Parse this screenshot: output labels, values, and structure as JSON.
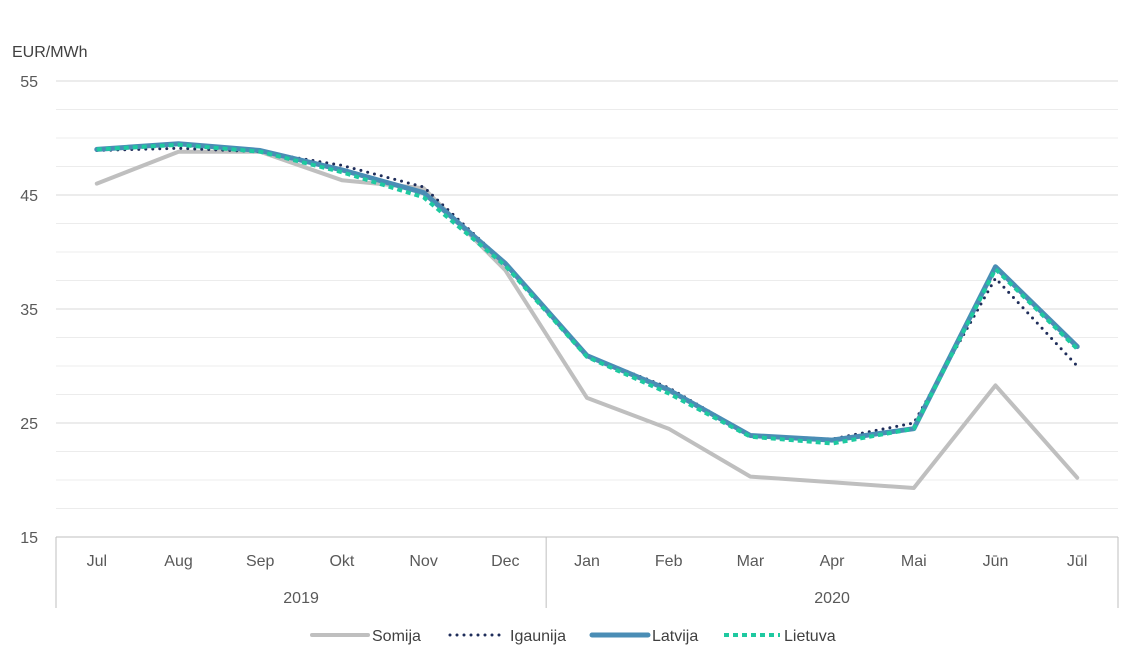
{
  "chart_data": {
    "type": "line",
    "title": "",
    "ylabel": "EUR/MWh",
    "xlabel": "",
    "ylim": [
      15,
      55
    ],
    "yticks": [
      15,
      25,
      35,
      45,
      55
    ],
    "grid": true,
    "legend_position": "bottom",
    "categories": [
      "Jul",
      "Aug",
      "Sep",
      "Okt",
      "Nov",
      "Dec",
      "Jan",
      "Feb",
      "Mar",
      "Apr",
      "Mai",
      "Jūn",
      "Jūl"
    ],
    "year_groups": [
      {
        "label": "2019",
        "span": 6
      },
      {
        "label": "2020",
        "span": 7
      }
    ],
    "series": [
      {
        "name": "Somija",
        "color": "#bfbfbf",
        "style": "solid",
        "values": [
          46.0,
          48.8,
          48.8,
          46.3,
          45.6,
          38.4,
          27.2,
          24.5,
          20.3,
          19.8,
          19.3,
          28.3,
          20.2
        ]
      },
      {
        "name": "Igaunija",
        "color": "#1f2d5a",
        "style": "dotted",
        "values": [
          48.9,
          49.1,
          48.8,
          47.6,
          45.7,
          39.0,
          30.9,
          28.1,
          23.9,
          23.6,
          25.0,
          37.7,
          30.0
        ]
      },
      {
        "name": "Latvija",
        "color": "#4a8db5",
        "style": "solid",
        "values": [
          49.0,
          49.5,
          48.9,
          47.2,
          45.2,
          39.0,
          30.9,
          27.9,
          23.9,
          23.5,
          24.5,
          38.7,
          31.7
        ]
      },
      {
        "name": "Lietuva",
        "color": "#1ec9a0",
        "style": "dashed",
        "values": [
          49.0,
          49.4,
          48.8,
          47.0,
          44.8,
          38.8,
          30.8,
          27.6,
          23.8,
          23.2,
          24.5,
          38.5,
          31.5
        ]
      }
    ]
  }
}
